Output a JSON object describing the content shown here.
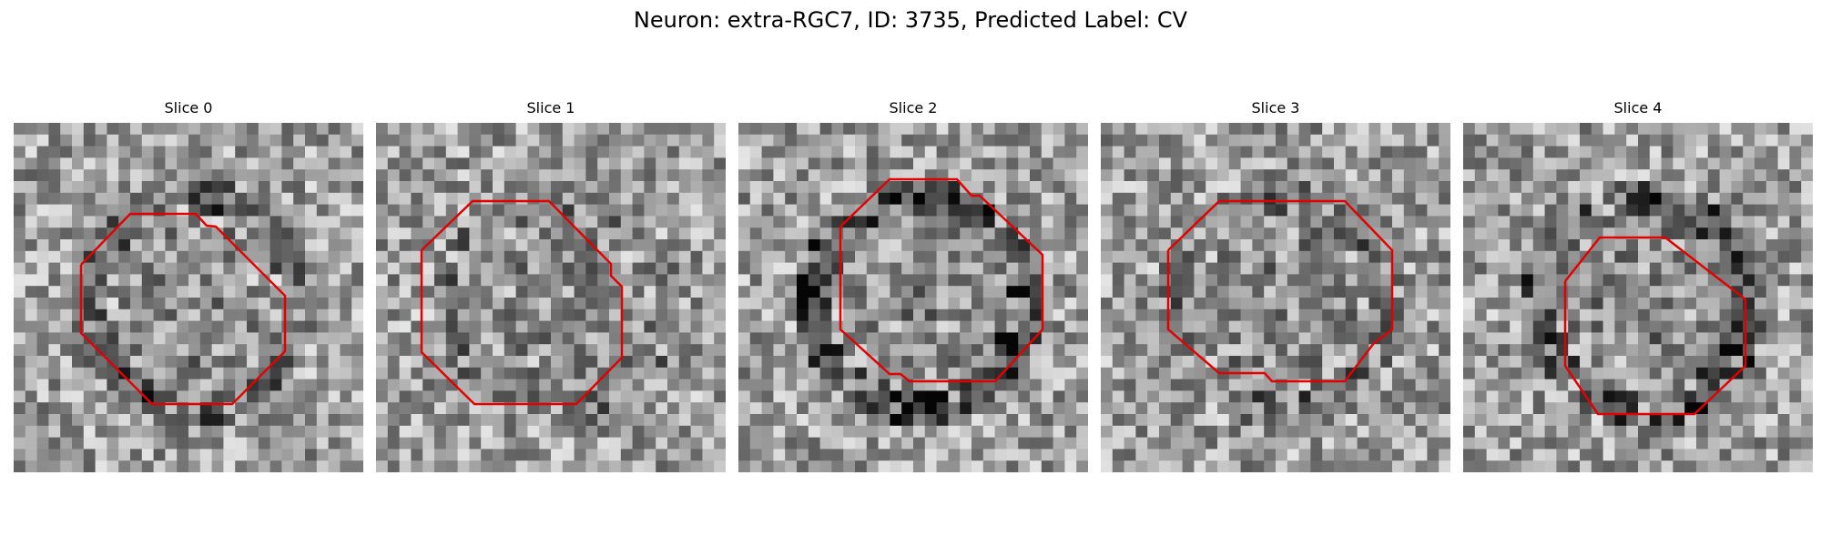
{
  "figure": {
    "suptitle": "Neuron: extra-RGC7, ID: 3735, Predicted Label: CV"
  },
  "panels": [
    {
      "title": "Slice 0",
      "seed": 11,
      "dark_ring": 0.35,
      "outline_color": "#e00000"
    },
    {
      "title": "Slice 1",
      "seed": 27,
      "dark_ring": 0.2,
      "outline_color": "#e00000"
    },
    {
      "title": "Slice 2",
      "seed": 43,
      "dark_ring": 0.55,
      "outline_color": "#e00000"
    },
    {
      "title": "Slice 3",
      "seed": 59,
      "dark_ring": 0.25,
      "outline_color": "#e00000"
    },
    {
      "title": "Slice 4",
      "seed": 71,
      "dark_ring": 0.45,
      "outline_color": "#e00000"
    }
  ],
  "colors": {
    "outline": "#e00000",
    "background": "#ffffff"
  }
}
